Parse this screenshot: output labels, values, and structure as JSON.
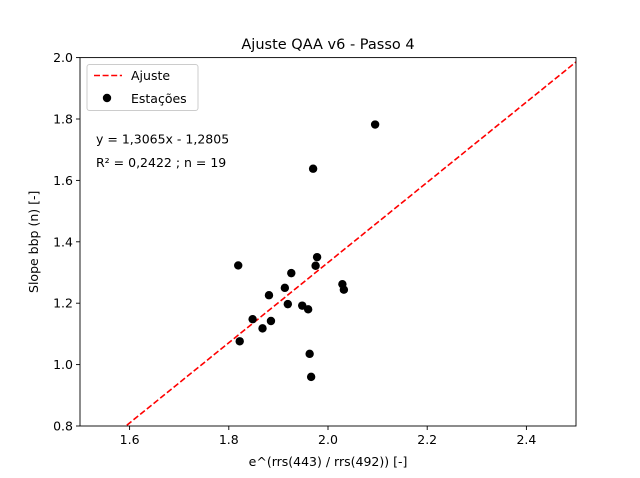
{
  "chart_data": {
    "type": "scatter",
    "title": "Ajuste QAA v6 - Passo 4",
    "xlabel": "e^(rrs(443) / rrs(492)) [-]",
    "ylabel": "Slope bbp (n) [-]",
    "xlim": [
      1.5,
      2.5
    ],
    "ylim": [
      0.8,
      2.0
    ],
    "xticks": [
      1.6,
      1.8,
      2.0,
      2.2,
      2.4
    ],
    "xtick_labels": [
      "1.6",
      "1.8",
      "2.0",
      "2.2",
      "2.4"
    ],
    "yticks": [
      0.8,
      1.0,
      1.2,
      1.4,
      1.6,
      1.8,
      2.0
    ],
    "ytick_labels": [
      "0.8",
      "1.0",
      "1.2",
      "1.4",
      "1.6",
      "1.8",
      "2.0"
    ],
    "grid": false,
    "legend_position": "top-left",
    "legend": [
      {
        "label": "Ajuste",
        "kind": "line",
        "color": "#ff0000",
        "style": "dashed"
      },
      {
        "label": "Estações",
        "kind": "marker",
        "color": "#000000"
      }
    ],
    "annotations": [
      "y = 1,3065x - 1,2805",
      "R² = 0,2422 ; n = 19"
    ],
    "fit": {
      "slope": 1.3065,
      "intercept": -1.2805,
      "color": "#ff0000"
    },
    "series": [
      {
        "name": "Estações",
        "color": "#000000",
        "points": [
          [
            1.819,
            1.323
          ],
          [
            1.822,
            1.076
          ],
          [
            1.848,
            1.148
          ],
          [
            1.868,
            1.118
          ],
          [
            1.881,
            1.226
          ],
          [
            1.885,
            1.142
          ],
          [
            1.913,
            1.25
          ],
          [
            1.919,
            1.197
          ],
          [
            1.926,
            1.298
          ],
          [
            1.948,
            1.192
          ],
          [
            1.96,
            1.18
          ],
          [
            1.963,
            1.035
          ],
          [
            1.966,
            0.96
          ],
          [
            1.97,
            1.638
          ],
          [
            1.975,
            1.322
          ],
          [
            1.978,
            1.35
          ],
          [
            2.029,
            1.262
          ],
          [
            2.032,
            1.244
          ],
          [
            2.095,
            1.782
          ]
        ]
      }
    ]
  }
}
